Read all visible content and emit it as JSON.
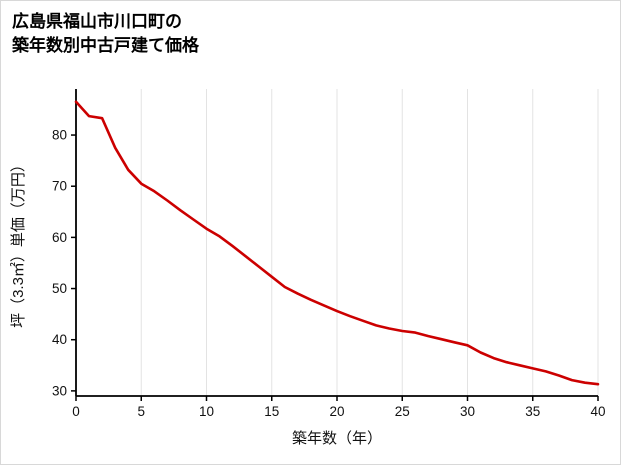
{
  "page": {
    "background": "#ffffff",
    "border_color": "#d8d8d8"
  },
  "chart_data": {
    "type": "line",
    "title_line1": "広島県福山市川口町の",
    "title_line2": "築年数別中古戸建て価格",
    "xlabel": "築年数（年）",
    "ylabel": "坪（3.3㎡）単価（万円）",
    "x": [
      0,
      1,
      2,
      3,
      4,
      5,
      6,
      7,
      8,
      9,
      10,
      11,
      12,
      13,
      14,
      15,
      16,
      17,
      18,
      19,
      20,
      21,
      22,
      23,
      24,
      25,
      26,
      27,
      28,
      29,
      30,
      31,
      32,
      33,
      34,
      35,
      36,
      37,
      38,
      39,
      40
    ],
    "values": [
      86.5,
      83.7,
      83.3,
      77.5,
      73.2,
      70.5,
      69.0,
      67.2,
      65.3,
      63.5,
      61.7,
      60.2,
      58.3,
      56.3,
      54.3,
      52.3,
      50.3,
      49.0,
      47.8,
      46.7,
      45.6,
      44.6,
      43.7,
      42.8,
      42.2,
      41.7,
      41.4,
      40.7,
      40.1,
      39.5,
      38.9,
      37.5,
      36.4,
      35.6,
      35.0,
      34.4,
      33.8,
      33.0,
      32.1,
      31.6,
      31.3
    ],
    "xlim": [
      0,
      40
    ],
    "ylim": [
      29,
      89
    ],
    "x_ticks": [
      0,
      5,
      10,
      15,
      20,
      25,
      30,
      35,
      40
    ],
    "y_ticks": [
      30,
      40,
      50,
      60,
      70,
      80
    ],
    "grid": "vertical-only",
    "legend": "none",
    "line_color": "#cc0000",
    "axis_color": "#000000",
    "grid_color": "#e3e3e3",
    "tick_label_color": "#111111"
  }
}
